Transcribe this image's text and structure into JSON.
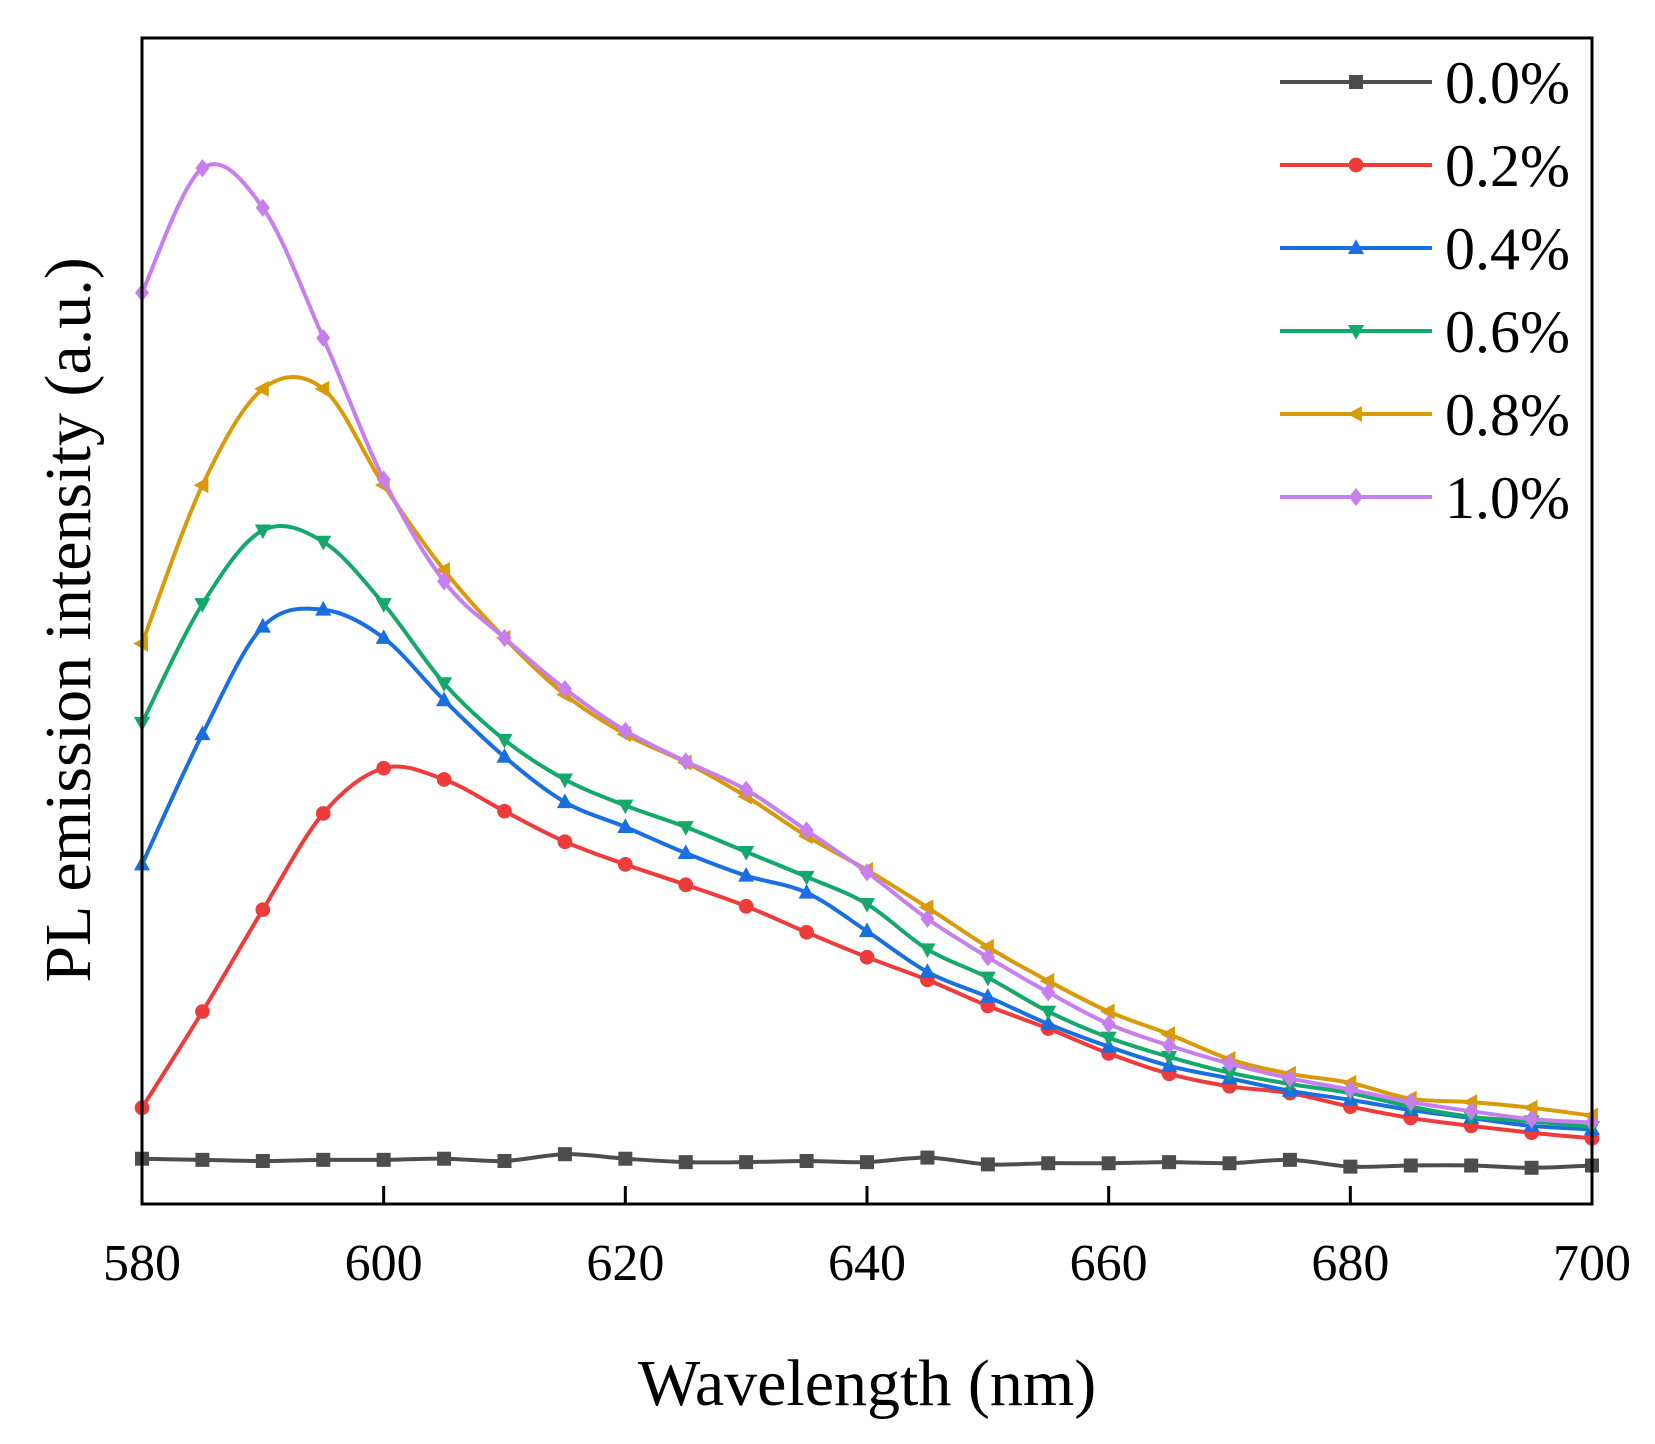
{
  "chart_data": {
    "type": "line",
    "title": "",
    "xlabel": "Wavelength (nm)",
    "ylabel": "PL emission intensity (a.u.)",
    "xlim": [
      580,
      700
    ],
    "ylim": [
      -0.3,
      10.0
    ],
    "xticks": [
      580,
      600,
      620,
      640,
      660,
      680,
      700
    ],
    "xtick_labels": [
      "580",
      "600",
      "620",
      "640",
      "660",
      "680",
      "700"
    ],
    "yticks_shown": false,
    "legend_position": "top-right",
    "x": [
      580,
      585,
      590,
      595,
      600,
      605,
      610,
      615,
      620,
      625,
      630,
      635,
      640,
      645,
      650,
      655,
      660,
      665,
      670,
      675,
      680,
      685,
      690,
      695,
      700
    ],
    "series": [
      {
        "name": "0.0%",
        "color": "#4d4d4d",
        "marker": "square",
        "values": [
          0.1,
          0.09,
          0.08,
          0.09,
          0.09,
          0.1,
          0.08,
          0.14,
          0.1,
          0.07,
          0.07,
          0.08,
          0.07,
          0.11,
          0.05,
          0.06,
          0.06,
          0.07,
          0.06,
          0.09,
          0.03,
          0.04,
          0.04,
          0.02,
          0.04
        ]
      },
      {
        "name": "0.2%",
        "color": "#ee3b3b",
        "marker": "circle",
        "values": [
          0.55,
          1.4,
          2.3,
          3.15,
          3.55,
          3.45,
          3.17,
          2.9,
          2.7,
          2.52,
          2.33,
          2.1,
          1.88,
          1.68,
          1.45,
          1.25,
          1.03,
          0.85,
          0.74,
          0.68,
          0.56,
          0.46,
          0.39,
          0.33,
          0.28
        ]
      },
      {
        "name": "0.4%",
        "color": "#1a6fe0",
        "marker": "triangle-up",
        "values": [
          2.7,
          3.85,
          4.8,
          4.95,
          4.7,
          4.15,
          3.65,
          3.25,
          3.03,
          2.8,
          2.6,
          2.45,
          2.11,
          1.75,
          1.53,
          1.29,
          1.09,
          0.92,
          0.81,
          0.7,
          0.62,
          0.53,
          0.46,
          0.39,
          0.36
        ]
      },
      {
        "name": "0.6%",
        "color": "#14a86b",
        "marker": "triangle-down",
        "values": [
          3.95,
          5.0,
          5.65,
          5.55,
          5.0,
          4.3,
          3.8,
          3.45,
          3.22,
          3.03,
          2.81,
          2.59,
          2.35,
          1.95,
          1.7,
          1.4,
          1.17,
          1.0,
          0.86,
          0.76,
          0.68,
          0.56,
          0.47,
          0.43,
          0.38
        ]
      },
      {
        "name": "0.8%",
        "color": "#d99a0a",
        "marker": "triangle-left",
        "values": [
          4.65,
          6.05,
          6.9,
          6.9,
          6.05,
          5.3,
          4.7,
          4.2,
          3.85,
          3.6,
          3.3,
          2.95,
          2.65,
          2.32,
          1.97,
          1.67,
          1.4,
          1.2,
          0.98,
          0.85,
          0.77,
          0.63,
          0.6,
          0.55,
          0.48
        ]
      },
      {
        "name": "1.0%",
        "color": "#c77ff0",
        "marker": "diamond",
        "values": [
          7.75,
          8.85,
          8.5,
          7.35,
          6.1,
          5.2,
          4.7,
          4.25,
          3.88,
          3.61,
          3.36,
          3.0,
          2.63,
          2.22,
          1.88,
          1.57,
          1.29,
          1.1,
          0.94,
          0.81,
          0.71,
          0.6,
          0.52,
          0.45,
          0.42
        ]
      }
    ]
  }
}
